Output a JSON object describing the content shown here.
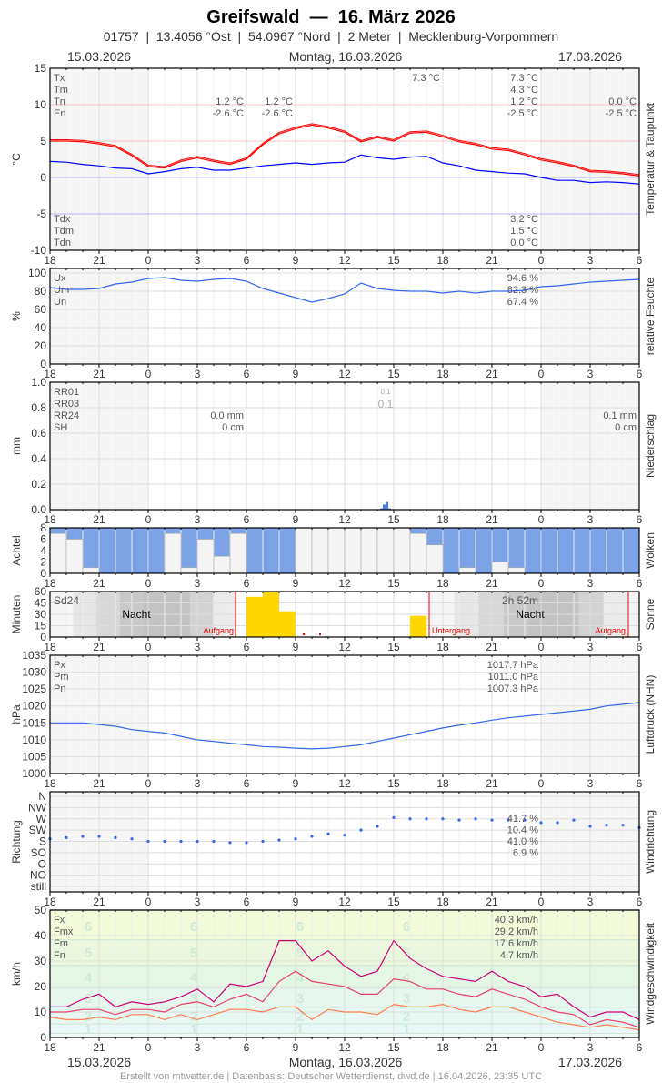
{
  "header": {
    "title": "Greifswald  —  16. März 2026",
    "subtitle": "01757  |  13.4056 °Ost  |  54.0967 °Nord  |  2 Meter  |  Mecklenburg-Vorpommern",
    "date_left": "15.03.2026",
    "date_center": "Montag, 16.03.2026",
    "date_right": "17.03.2026"
  },
  "footer": {
    "credit": "Erstellt von mtwetter.de | Datenbasis: Deutscher Wetterdienst, dwd.de | 16.04.2026, 23:35 UTC"
  },
  "x_tick_labels": [
    "18",
    "21",
    "0",
    "3",
    "6",
    "9",
    "12",
    "15",
    "18",
    "21",
    "0",
    "3",
    "6"
  ],
  "hours": [
    "18",
    "19",
    "20",
    "21",
    "22",
    "23",
    "0",
    "1",
    "2",
    "3",
    "4",
    "5",
    "6",
    "7",
    "8",
    "9",
    "10",
    "11",
    "12",
    "13",
    "14",
    "15",
    "16",
    "17",
    "18",
    "19",
    "20",
    "21",
    "22",
    "23",
    "0",
    "1",
    "2",
    "3",
    "4",
    "5",
    "6"
  ],
  "chart_data": [
    {
      "id": "temp",
      "type": "line",
      "ylabel": "°C",
      "side_label": "Temperatur & Taupunkt",
      "ylim": [
        -10,
        15
      ],
      "yticks": [
        "15",
        "10",
        "5",
        "0",
        "-5",
        "-10"
      ],
      "grid": true,
      "series": [
        {
          "name": "Temperatur",
          "color": "#ff0000",
          "values": [
            5.0,
            5.0,
            4.9,
            4.6,
            4.2,
            3.0,
            1.5,
            1.3,
            2.2,
            2.7,
            2.2,
            1.8,
            2.5,
            4.5,
            6.0,
            6.7,
            7.2,
            6.8,
            6.2,
            4.9,
            5.5,
            5.0,
            6.1,
            6.2,
            5.6,
            4.9,
            4.5,
            3.9,
            3.7,
            3.1,
            2.4,
            2.0,
            1.5,
            0.8,
            0.7,
            0.5,
            0.2
          ]
        },
        {
          "name": "Taupunkt",
          "color": "#0000ff",
          "values": [
            2.2,
            2.1,
            1.8,
            1.6,
            1.3,
            1.2,
            0.5,
            0.8,
            1.2,
            1.4,
            1.0,
            1.0,
            1.3,
            1.6,
            1.8,
            2.0,
            1.8,
            2.0,
            2.1,
            3.1,
            2.7,
            2.5,
            2.8,
            2.9,
            2.0,
            1.6,
            1.0,
            0.8,
            0.6,
            0.5,
            0.0,
            -0.4,
            -0.4,
            -0.7,
            -0.6,
            -0.7,
            -0.9
          ]
        }
      ],
      "stats_top": [
        {
          "label": "Tx",
          "values": [
            "",
            "",
            "7.3 °C",
            "7.3 °C",
            ""
          ]
        },
        {
          "label": "Tm",
          "values": [
            "",
            "",
            "",
            "4.3 °C",
            ""
          ]
        },
        {
          "label": "Tn",
          "values": [
            "1.2 °C",
            "1.2 °C",
            "",
            "1.2 °C",
            "0.0 °C"
          ]
        },
        {
          "label": "En",
          "values": [
            "-2.6 °C",
            "-2.6 °C",
            "",
            "-2.5 °C",
            "-2.5 °C"
          ]
        }
      ],
      "stats_bottom": [
        {
          "label": "Tdx",
          "values": [
            "",
            "",
            "",
            "3.2 °C",
            ""
          ]
        },
        {
          "label": "Tdm",
          "values": [
            "",
            "",
            "",
            "1.5 °C",
            ""
          ]
        },
        {
          "label": "Tdn",
          "values": [
            "",
            "",
            "",
            "0.0 °C",
            ""
          ]
        }
      ]
    },
    {
      "id": "hum",
      "type": "line",
      "ylabel": "%",
      "side_label": "relative Feuchte",
      "ylim": [
        0,
        100
      ],
      "yticks": [
        "100",
        "80",
        "60",
        "40",
        "20",
        "0"
      ],
      "grid": true,
      "series": [
        {
          "name": "Feuchte",
          "color": "#3366ee",
          "values": [
            84,
            82,
            82,
            83,
            88,
            90,
            94,
            95,
            92,
            91,
            93,
            94,
            91,
            83,
            78,
            73,
            68,
            72,
            77,
            89,
            83,
            81,
            80,
            80,
            78,
            80,
            78,
            80,
            80,
            81,
            85,
            86,
            88,
            90,
            91,
            92,
            93
          ]
        }
      ],
      "stats_top": [
        {
          "label": "Ux",
          "values": [
            "",
            "",
            "",
            "94.6 %",
            ""
          ]
        },
        {
          "label": "Um",
          "values": [
            "",
            "",
            "",
            "82.3 %",
            ""
          ]
        },
        {
          "label": "Un",
          "values": [
            "",
            "",
            "",
            "67.4 %",
            ""
          ]
        }
      ]
    },
    {
      "id": "precip",
      "type": "bar",
      "ylabel": "mm",
      "side_label": "Niederschlag",
      "ylim": [
        0,
        1.0
      ],
      "yticks": [
        "1.0",
        "0.8",
        "0.6",
        "0.4",
        "0.2",
        "0.0"
      ],
      "grid": true,
      "bars_10min": [
        {
          "time": "14:10",
          "mm": 0.01
        },
        {
          "time": "14:20",
          "mm": 0.04
        },
        {
          "time": "14:30",
          "mm": 0.06
        },
        {
          "time": "14:40",
          "mm": 0.01
        }
      ],
      "annotations": {
        "rr01": "0.1",
        "rr03": "0.1"
      },
      "stats_top": [
        {
          "label": "RR01",
          "values": [
            "",
            "",
            "",
            "",
            ""
          ]
        },
        {
          "label": "RR03",
          "values": [
            "",
            "",
            "",
            "",
            ""
          ]
        },
        {
          "label": "RR24",
          "values": [
            "0.0 mm",
            "",
            "",
            "",
            "0.1 mm"
          ]
        },
        {
          "label": "SH",
          "values": [
            "0 cm",
            "",
            "",
            "",
            "0 cm"
          ]
        }
      ]
    },
    {
      "id": "clouds",
      "type": "bar",
      "ylabel": "Achtel",
      "side_label": "Wolken",
      "ylim": [
        0,
        8
      ],
      "yticks": [
        "8",
        "6",
        "4",
        "2",
        "0"
      ],
      "sky_color": "#7ba3e6",
      "values": [
        7,
        6,
        1,
        0,
        0,
        0,
        0,
        7,
        1,
        6,
        3,
        7,
        0,
        0,
        0,
        8,
        8,
        8,
        8,
        8,
        8,
        8,
        7,
        5,
        0,
        1,
        0,
        2,
        1,
        0,
        0,
        0,
        0,
        0,
        0,
        0,
        0
      ]
    },
    {
      "id": "sun",
      "type": "bar",
      "ylabel": "Minuten",
      "side_label": "Sonne",
      "ylim": [
        0,
        60
      ],
      "yticks": [
        "60",
        "45",
        "30",
        "15",
        "0"
      ],
      "bar_color": "#ffd700",
      "values": [
        0,
        0,
        0,
        0,
        0,
        0,
        0,
        0,
        0,
        0,
        0,
        0,
        53,
        60,
        34,
        1,
        1,
        0,
        0,
        0,
        0,
        0,
        28,
        0,
        0,
        0,
        0,
        0,
        0,
        0,
        0,
        0,
        0,
        0,
        0,
        0,
        0
      ],
      "labels": {
        "sd24": "Sd24",
        "total": "2h 52m",
        "night1": "Nacht",
        "night2": "Nacht",
        "sunrise1": "Aufgang",
        "sunset": "Untergang",
        "sunrise2": "Aufgang"
      }
    },
    {
      "id": "pressure",
      "type": "line",
      "ylabel": "hPa",
      "side_label": "Luftdruck (NHN)",
      "ylim": [
        1000,
        1035
      ],
      "yticks": [
        "1035",
        "1030",
        "1025",
        "1020",
        "1015",
        "1010",
        "1005",
        "1000"
      ],
      "grid": true,
      "series": [
        {
          "name": "Luftdruck",
          "color": "#3366ee",
          "values": [
            1015,
            1015,
            1015,
            1014.5,
            1014,
            1013,
            1012.5,
            1012,
            1011,
            1010,
            1009.5,
            1009,
            1008.5,
            1008,
            1007.8,
            1007.5,
            1007.3,
            1007.5,
            1008,
            1008.5,
            1009.5,
            1010.5,
            1011.5,
            1012.5,
            1013.5,
            1014.3,
            1015,
            1015.8,
            1016.5,
            1017,
            1017.5,
            1018,
            1018.5,
            1019,
            1020,
            1020.5,
            1021
          ]
        }
      ],
      "stats_top": [
        {
          "label": "Px",
          "values": [
            "",
            "",
            "",
            "1017.7 hPa",
            ""
          ]
        },
        {
          "label": "Pm",
          "values": [
            "",
            "",
            "",
            "1011.0 hPa",
            ""
          ]
        },
        {
          "label": "Pn",
          "values": [
            "",
            "",
            "",
            "1007.3 hPa",
            ""
          ]
        }
      ]
    },
    {
      "id": "winddir",
      "type": "scatter",
      "ylabel": "Richtung",
      "side_label": "Windrichtung",
      "yticks": [
        "N",
        "NW",
        "W",
        "SW",
        "S",
        "SO",
        "O",
        "NO",
        "still"
      ],
      "point_color": "#3366ee",
      "values_deg": [
        190,
        195,
        200,
        200,
        195,
        190,
        180,
        180,
        180,
        180,
        180,
        175,
        175,
        180,
        185,
        190,
        200,
        210,
        205,
        225,
        240,
        275,
        270,
        270,
        270,
        265,
        270,
        265,
        265,
        265,
        255,
        255,
        265,
        240,
        245,
        245,
        235
      ],
      "stats": [
        "41.7 %",
        "10.4 %",
        "41.0 %",
        "6.9 %"
      ]
    },
    {
      "id": "wind",
      "type": "line",
      "ylabel": "km/h",
      "side_label": "Windgeschwindigkeit",
      "ylim": [
        0,
        50
      ],
      "yticks": [
        "50",
        "40",
        "30",
        "20",
        "10",
        "0"
      ],
      "grid": true,
      "beaufort_labels": [
        "1",
        "2",
        "3",
        "4",
        "5",
        "6"
      ],
      "series": [
        {
          "name": "Fx",
          "color": "#cc0077",
          "values": [
            12,
            12,
            15,
            17,
            12,
            14,
            13,
            14,
            16,
            19,
            14,
            21,
            20,
            22,
            38,
            38,
            30,
            34,
            28,
            24,
            26,
            38,
            31,
            27,
            24,
            23,
            22,
            26,
            22,
            20,
            16,
            17,
            12,
            8,
            10,
            10,
            7
          ]
        },
        {
          "name": "Fm",
          "color": "#e8406a",
          "values": [
            10,
            10,
            11,
            11,
            9,
            11,
            11,
            10,
            13,
            14,
            12,
            15,
            17,
            14,
            22,
            26,
            22,
            21,
            20,
            17,
            17,
            23,
            22,
            19,
            19,
            17,
            16,
            19,
            17,
            15,
            12,
            10,
            9,
            5,
            7,
            6,
            4
          ]
        },
        {
          "name": "Fn",
          "color": "#ff7f50",
          "values": [
            8,
            7,
            7,
            8,
            7,
            9,
            9,
            7,
            9,
            7,
            9,
            11,
            11,
            10,
            12,
            12,
            7,
            11,
            10,
            10,
            9,
            13,
            12,
            12,
            13,
            11,
            10,
            12,
            12,
            10,
            8,
            6,
            5,
            4,
            5,
            4,
            3
          ]
        }
      ],
      "stats_top": [
        {
          "label": "Fx",
          "values": [
            "",
            "",
            "",
            "40.3 km/h",
            ""
          ],
          "color": "#cc0077"
        },
        {
          "label": "Fmx",
          "values": [
            "",
            "",
            "",
            "29.2 km/h",
            ""
          ],
          "color": "#555555"
        },
        {
          "label": "Fm",
          "values": [
            "",
            "",
            "",
            "17.6 km/h",
            ""
          ],
          "color": "#e8406a"
        },
        {
          "label": "Fn",
          "values": [
            "",
            "",
            "",
            "4.7 km/h",
            ""
          ],
          "color": "#ff7f50"
        }
      ]
    }
  ]
}
